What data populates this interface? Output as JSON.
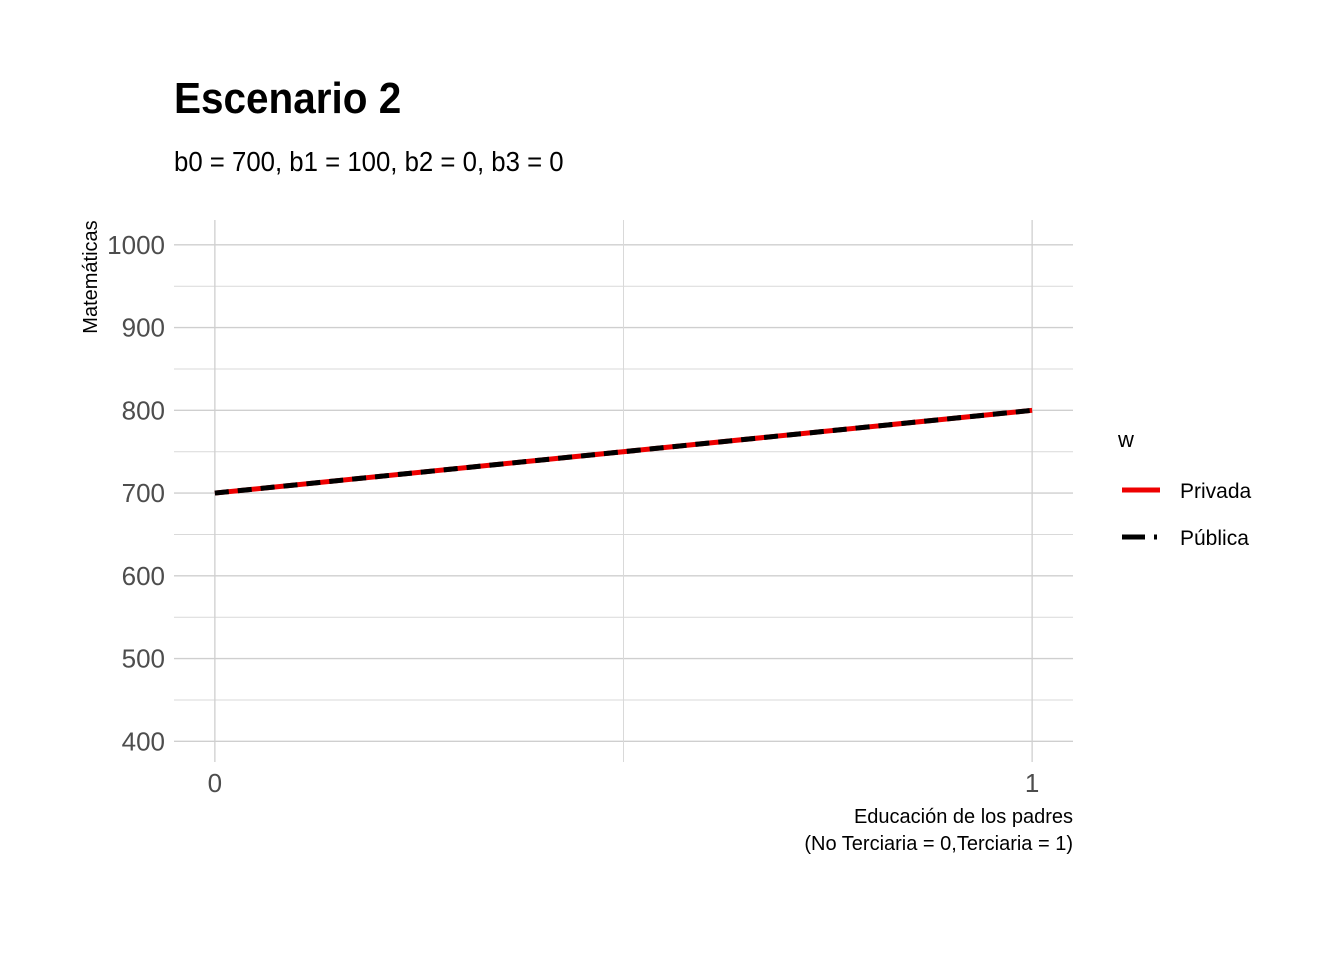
{
  "chart_data": {
    "type": "line",
    "title": "Escenario 2",
    "subtitle": "b0 = 700, b1 = 100, b2 = 0, b3 = 0",
    "xlabel": [
      "Educación de los padres",
      "(No Terciaria = 0,Terciaria = 1)"
    ],
    "ylabel": "Matemáticas",
    "xlim": [
      -0.05,
      1.05
    ],
    "ylim": [
      375,
      1030
    ],
    "x_ticks": [
      0,
      1
    ],
    "y_ticks": [
      400,
      500,
      600,
      700,
      800,
      900,
      1000
    ],
    "grid": true,
    "legend": {
      "title": "w",
      "position": "right"
    },
    "series": [
      {
        "name": "Privada",
        "x": [
          0,
          1
        ],
        "values": [
          700,
          800
        ],
        "color": "#ee0000",
        "style": "solid"
      },
      {
        "name": "Pública",
        "x": [
          0,
          1
        ],
        "values": [
          700,
          800
        ],
        "color": "#000000",
        "style": "dashed"
      }
    ]
  }
}
